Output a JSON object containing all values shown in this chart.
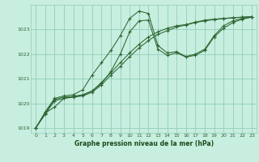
{
  "bg_color": "#c8eee0",
  "grid_color": "#8fcfb8",
  "line_color": "#2d6632",
  "xlabel": "Graphe pression niveau de la mer (hPa)",
  "xlabel_color": "#1a4a1a",
  "ylim": [
    1018.8,
    1024.0
  ],
  "xlim": [
    -0.5,
    23.5
  ],
  "xticks": [
    0,
    1,
    2,
    3,
    4,
    5,
    6,
    7,
    8,
    9,
    10,
    11,
    12,
    13,
    14,
    15,
    16,
    17,
    18,
    19,
    20,
    21,
    22,
    23
  ],
  "yticks": [
    1019,
    1020,
    1021,
    1022,
    1023
  ],
  "lines": [
    {
      "x": [
        0,
        1,
        2,
        3,
        4,
        5,
        6,
        7,
        8,
        9,
        10,
        11,
        12,
        13,
        14,
        15,
        16,
        17,
        18,
        19,
        20,
        21,
        22,
        23
      ],
      "y": [
        1019.0,
        1019.65,
        1020.2,
        1020.3,
        1020.35,
        1020.55,
        1021.15,
        1021.65,
        1022.15,
        1022.75,
        1023.45,
        1023.75,
        1023.65,
        1022.35,
        1022.05,
        1022.1,
        1021.9,
        1022.0,
        1022.2,
        1022.75,
        1023.15,
        1023.35,
        1023.45,
        1023.5
      ],
      "style": "-",
      "marker": "+"
    },
    {
      "x": [
        0,
        1,
        2,
        3,
        4,
        5,
        6,
        7,
        8,
        9,
        10,
        11,
        12,
        13,
        14,
        15,
        16,
        17,
        18,
        19,
        20,
        21,
        22,
        23
      ],
      "y": [
        1019.0,
        1019.6,
        1020.15,
        1020.25,
        1020.28,
        1020.35,
        1020.5,
        1020.85,
        1021.25,
        1021.65,
        1022.05,
        1022.4,
        1022.7,
        1022.9,
        1023.05,
        1023.15,
        1023.2,
        1023.3,
        1023.38,
        1023.42,
        1023.45,
        1023.48,
        1023.5,
        1023.52
      ],
      "style": "-",
      "marker": "+"
    },
    {
      "x": [
        0,
        1,
        2,
        3,
        4,
        5,
        6,
        7,
        8,
        9,
        10,
        11,
        12,
        13,
        14,
        15,
        16,
        17,
        18,
        19,
        20,
        21,
        22,
        23
      ],
      "y": [
        1019.0,
        1019.55,
        1020.1,
        1020.2,
        1020.25,
        1020.3,
        1020.45,
        1020.75,
        1021.15,
        1021.5,
        1021.9,
        1022.25,
        1022.55,
        1022.8,
        1022.95,
        1023.1,
        1023.18,
        1023.28,
        1023.35,
        1023.4,
        1023.44,
        1023.47,
        1023.5,
        1023.52
      ],
      "style": "-",
      "marker": "+"
    },
    {
      "x": [
        0,
        1,
        2,
        3,
        4,
        5,
        6,
        7,
        8,
        9,
        10,
        11,
        12,
        13,
        14,
        15,
        16,
        17,
        18,
        19,
        20,
        21,
        22,
        23
      ],
      "y": [
        1019.0,
        1019.6,
        1019.85,
        1020.2,
        1020.28,
        1020.32,
        1020.5,
        1020.8,
        1021.3,
        1022.0,
        1022.9,
        1023.35,
        1023.38,
        1022.2,
        1021.95,
        1022.05,
        1021.88,
        1021.95,
        1022.15,
        1022.7,
        1023.05,
        1023.28,
        1023.42,
        1023.5
      ],
      "style": "-",
      "marker": "+"
    }
  ]
}
